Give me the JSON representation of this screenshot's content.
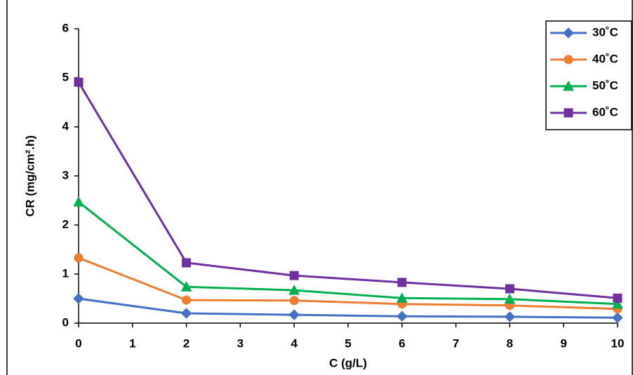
{
  "chart_data": {
    "type": "line",
    "y_label": "CR (mg/cm².h)",
    "x_label": "C (g/L)",
    "x": [
      0,
      2,
      4,
      6,
      8,
      10
    ],
    "series": [
      {
        "name": "30˚C",
        "color": "#4472c4",
        "marker": "diamond",
        "values": [
          0.5,
          0.2,
          0.17,
          0.14,
          0.13,
          0.11
        ]
      },
      {
        "name": "40˚C",
        "color": "#ed7d31",
        "marker": "circle",
        "values": [
          1.33,
          0.47,
          0.46,
          0.39,
          0.36,
          0.29
        ]
      },
      {
        "name": "50˚C",
        "color": "#00b050",
        "marker": "triangle",
        "values": [
          2.47,
          0.74,
          0.67,
          0.51,
          0.49,
          0.39
        ]
      },
      {
        "name": "60˚C",
        "color": "#7030a0",
        "marker": "square",
        "values": [
          4.91,
          1.23,
          0.97,
          0.83,
          0.7,
          0.51
        ]
      }
    ],
    "xlim": [
      0,
      10
    ],
    "xticks": [
      0,
      1,
      2,
      3,
      4,
      5,
      6,
      7,
      8,
      9,
      10
    ],
    "ylim": [
      0,
      6
    ],
    "yticks": [
      0,
      1,
      2,
      3,
      4,
      5,
      6
    ],
    "legend": "upper right"
  }
}
